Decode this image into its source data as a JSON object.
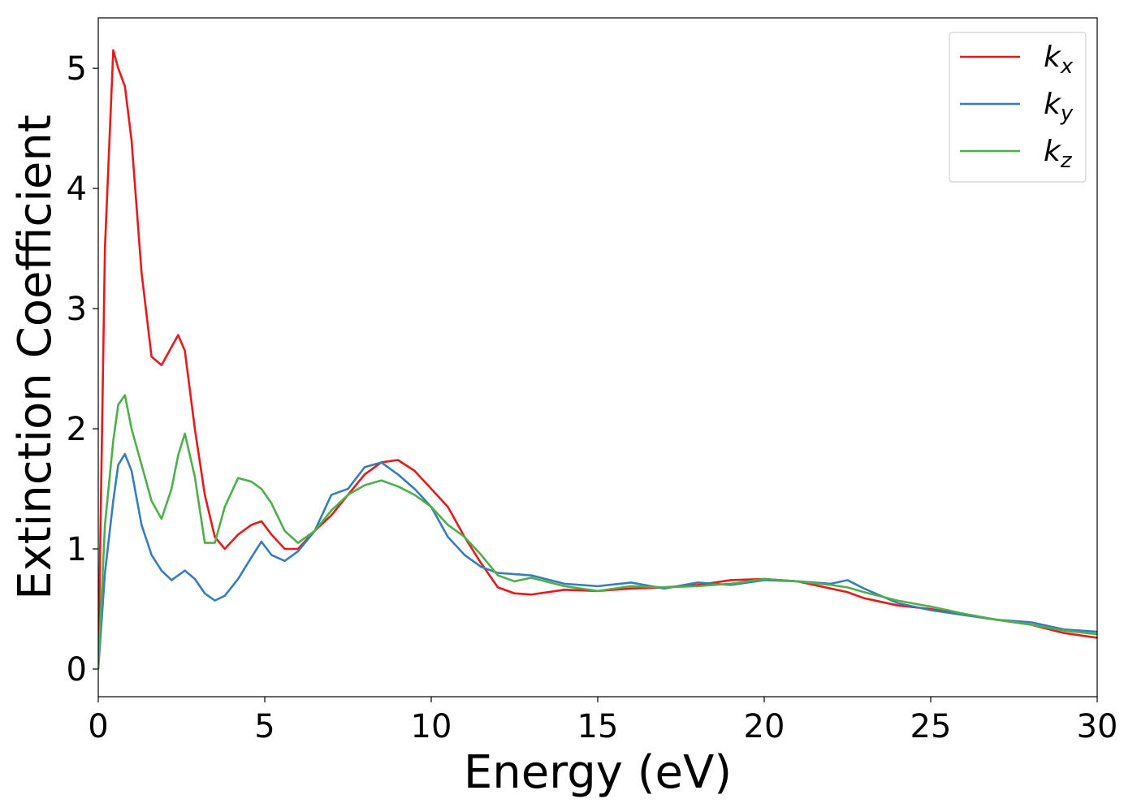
{
  "chart_data": {
    "type": "line",
    "x_label": "Energy (eV)",
    "y_label": "Extinction Coefficient",
    "x": [
      0,
      0.2,
      0.45,
      0.6,
      0.8,
      1.0,
      1.3,
      1.6,
      1.9,
      2.2,
      2.4,
      2.6,
      2.9,
      3.2,
      3.5,
      3.8,
      4.2,
      4.6,
      4.9,
      5.2,
      5.6,
      6.0,
      6.5,
      7.0,
      7.5,
      8.0,
      8.5,
      9.0,
      9.5,
      10,
      10.5,
      11,
      11.5,
      12,
      12.5,
      13,
      14,
      15,
      16,
      17,
      18,
      19,
      20,
      21,
      22,
      22.5,
      23,
      24,
      25,
      26,
      27,
      28,
      29,
      30
    ],
    "series": [
      {
        "name": "kx",
        "color": "#e41a1c",
        "values": [
          0,
          3.5,
          5.15,
          5.0,
          4.85,
          4.4,
          3.3,
          2.6,
          2.53,
          2.68,
          2.78,
          2.65,
          2.0,
          1.45,
          1.1,
          1.0,
          1.12,
          1.2,
          1.23,
          1.12,
          1.0,
          1.0,
          1.15,
          1.28,
          1.45,
          1.62,
          1.72,
          1.74,
          1.65,
          1.5,
          1.35,
          1.1,
          0.88,
          0.68,
          0.63,
          0.62,
          0.66,
          0.65,
          0.67,
          0.68,
          0.7,
          0.74,
          0.75,
          0.73,
          0.67,
          0.64,
          0.59,
          0.53,
          0.5,
          0.45,
          0.41,
          0.37,
          0.3,
          0.26
        ]
      },
      {
        "name": "ky",
        "color": "#377eb8",
        "values": [
          0,
          0.8,
          1.4,
          1.7,
          1.79,
          1.65,
          1.2,
          0.95,
          0.82,
          0.74,
          0.78,
          0.82,
          0.75,
          0.63,
          0.57,
          0.61,
          0.75,
          0.93,
          1.06,
          0.95,
          0.9,
          0.98,
          1.15,
          1.45,
          1.5,
          1.68,
          1.72,
          1.62,
          1.5,
          1.35,
          1.1,
          0.95,
          0.85,
          0.8,
          0.79,
          0.78,
          0.71,
          0.69,
          0.72,
          0.67,
          0.72,
          0.7,
          0.74,
          0.73,
          0.71,
          0.74,
          0.67,
          0.55,
          0.49,
          0.45,
          0.41,
          0.39,
          0.33,
          0.31
        ]
      },
      {
        "name": "kz",
        "color": "#4daf4a",
        "values": [
          0,
          1.2,
          1.9,
          2.2,
          2.28,
          2.0,
          1.7,
          1.4,
          1.25,
          1.5,
          1.78,
          1.96,
          1.6,
          1.05,
          1.05,
          1.35,
          1.59,
          1.56,
          1.5,
          1.38,
          1.15,
          1.05,
          1.15,
          1.32,
          1.45,
          1.53,
          1.57,
          1.52,
          1.45,
          1.35,
          1.2,
          1.1,
          0.95,
          0.78,
          0.73,
          0.76,
          0.69,
          0.65,
          0.69,
          0.68,
          0.69,
          0.71,
          0.75,
          0.73,
          0.7,
          0.68,
          0.64,
          0.57,
          0.52,
          0.46,
          0.41,
          0.37,
          0.32,
          0.29
        ]
      }
    ],
    "xlim": [
      0,
      30
    ],
    "ylim": [
      -0.23,
      5.42
    ],
    "xticks": [
      0,
      5,
      10,
      15,
      20,
      25,
      30
    ],
    "yticks": [
      0,
      1,
      2,
      3,
      4,
      5
    ],
    "legend": "upper right"
  }
}
